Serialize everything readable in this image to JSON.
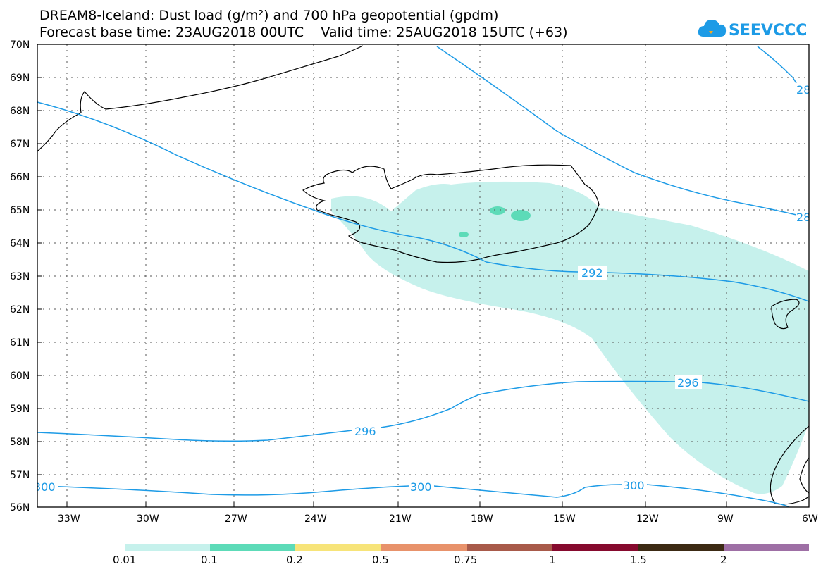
{
  "header": {
    "title_line1": "DREAM8-Iceland: Dust load (g/m²) and 700 hPa geopotential (gpdm)",
    "title_line2": "Forecast base time: 23AUG2018 00UTC    Valid time: 25AUG2018 15UTC (+63)"
  },
  "logo": {
    "text": "SEEVCCC",
    "icon": "cloud-icon",
    "color": "#1d9be6"
  },
  "map": {
    "lat_labels": [
      "70N",
      "69N",
      "68N",
      "67N",
      "66N",
      "65N",
      "64N",
      "63N",
      "62N",
      "61N",
      "60N",
      "59N",
      "58N",
      "57N",
      "56N"
    ],
    "lon_labels": [
      "33W",
      "30W",
      "27W",
      "24W",
      "21W",
      "18W",
      "15W",
      "12W",
      "9W",
      "6W"
    ],
    "contour_labels": [
      "292",
      "296",
      "296",
      "300",
      "300",
      "300",
      "28",
      "28"
    ],
    "contour_color": "#1d9be6",
    "dust_fill_low": "#c6f1ec",
    "dust_fill_mid": "#5ddbb8"
  },
  "colorbar": {
    "labels": [
      "0.01",
      "0.1",
      "0.2",
      "0.5",
      "0.75",
      "1",
      "1.5",
      "2"
    ],
    "colors": [
      "#c6f1ec",
      "#5ddbb8",
      "#f7e479",
      "#e8926b",
      "#a85a4a",
      "#860a2e",
      "#3c2a14",
      "#9e6fa5"
    ]
  }
}
